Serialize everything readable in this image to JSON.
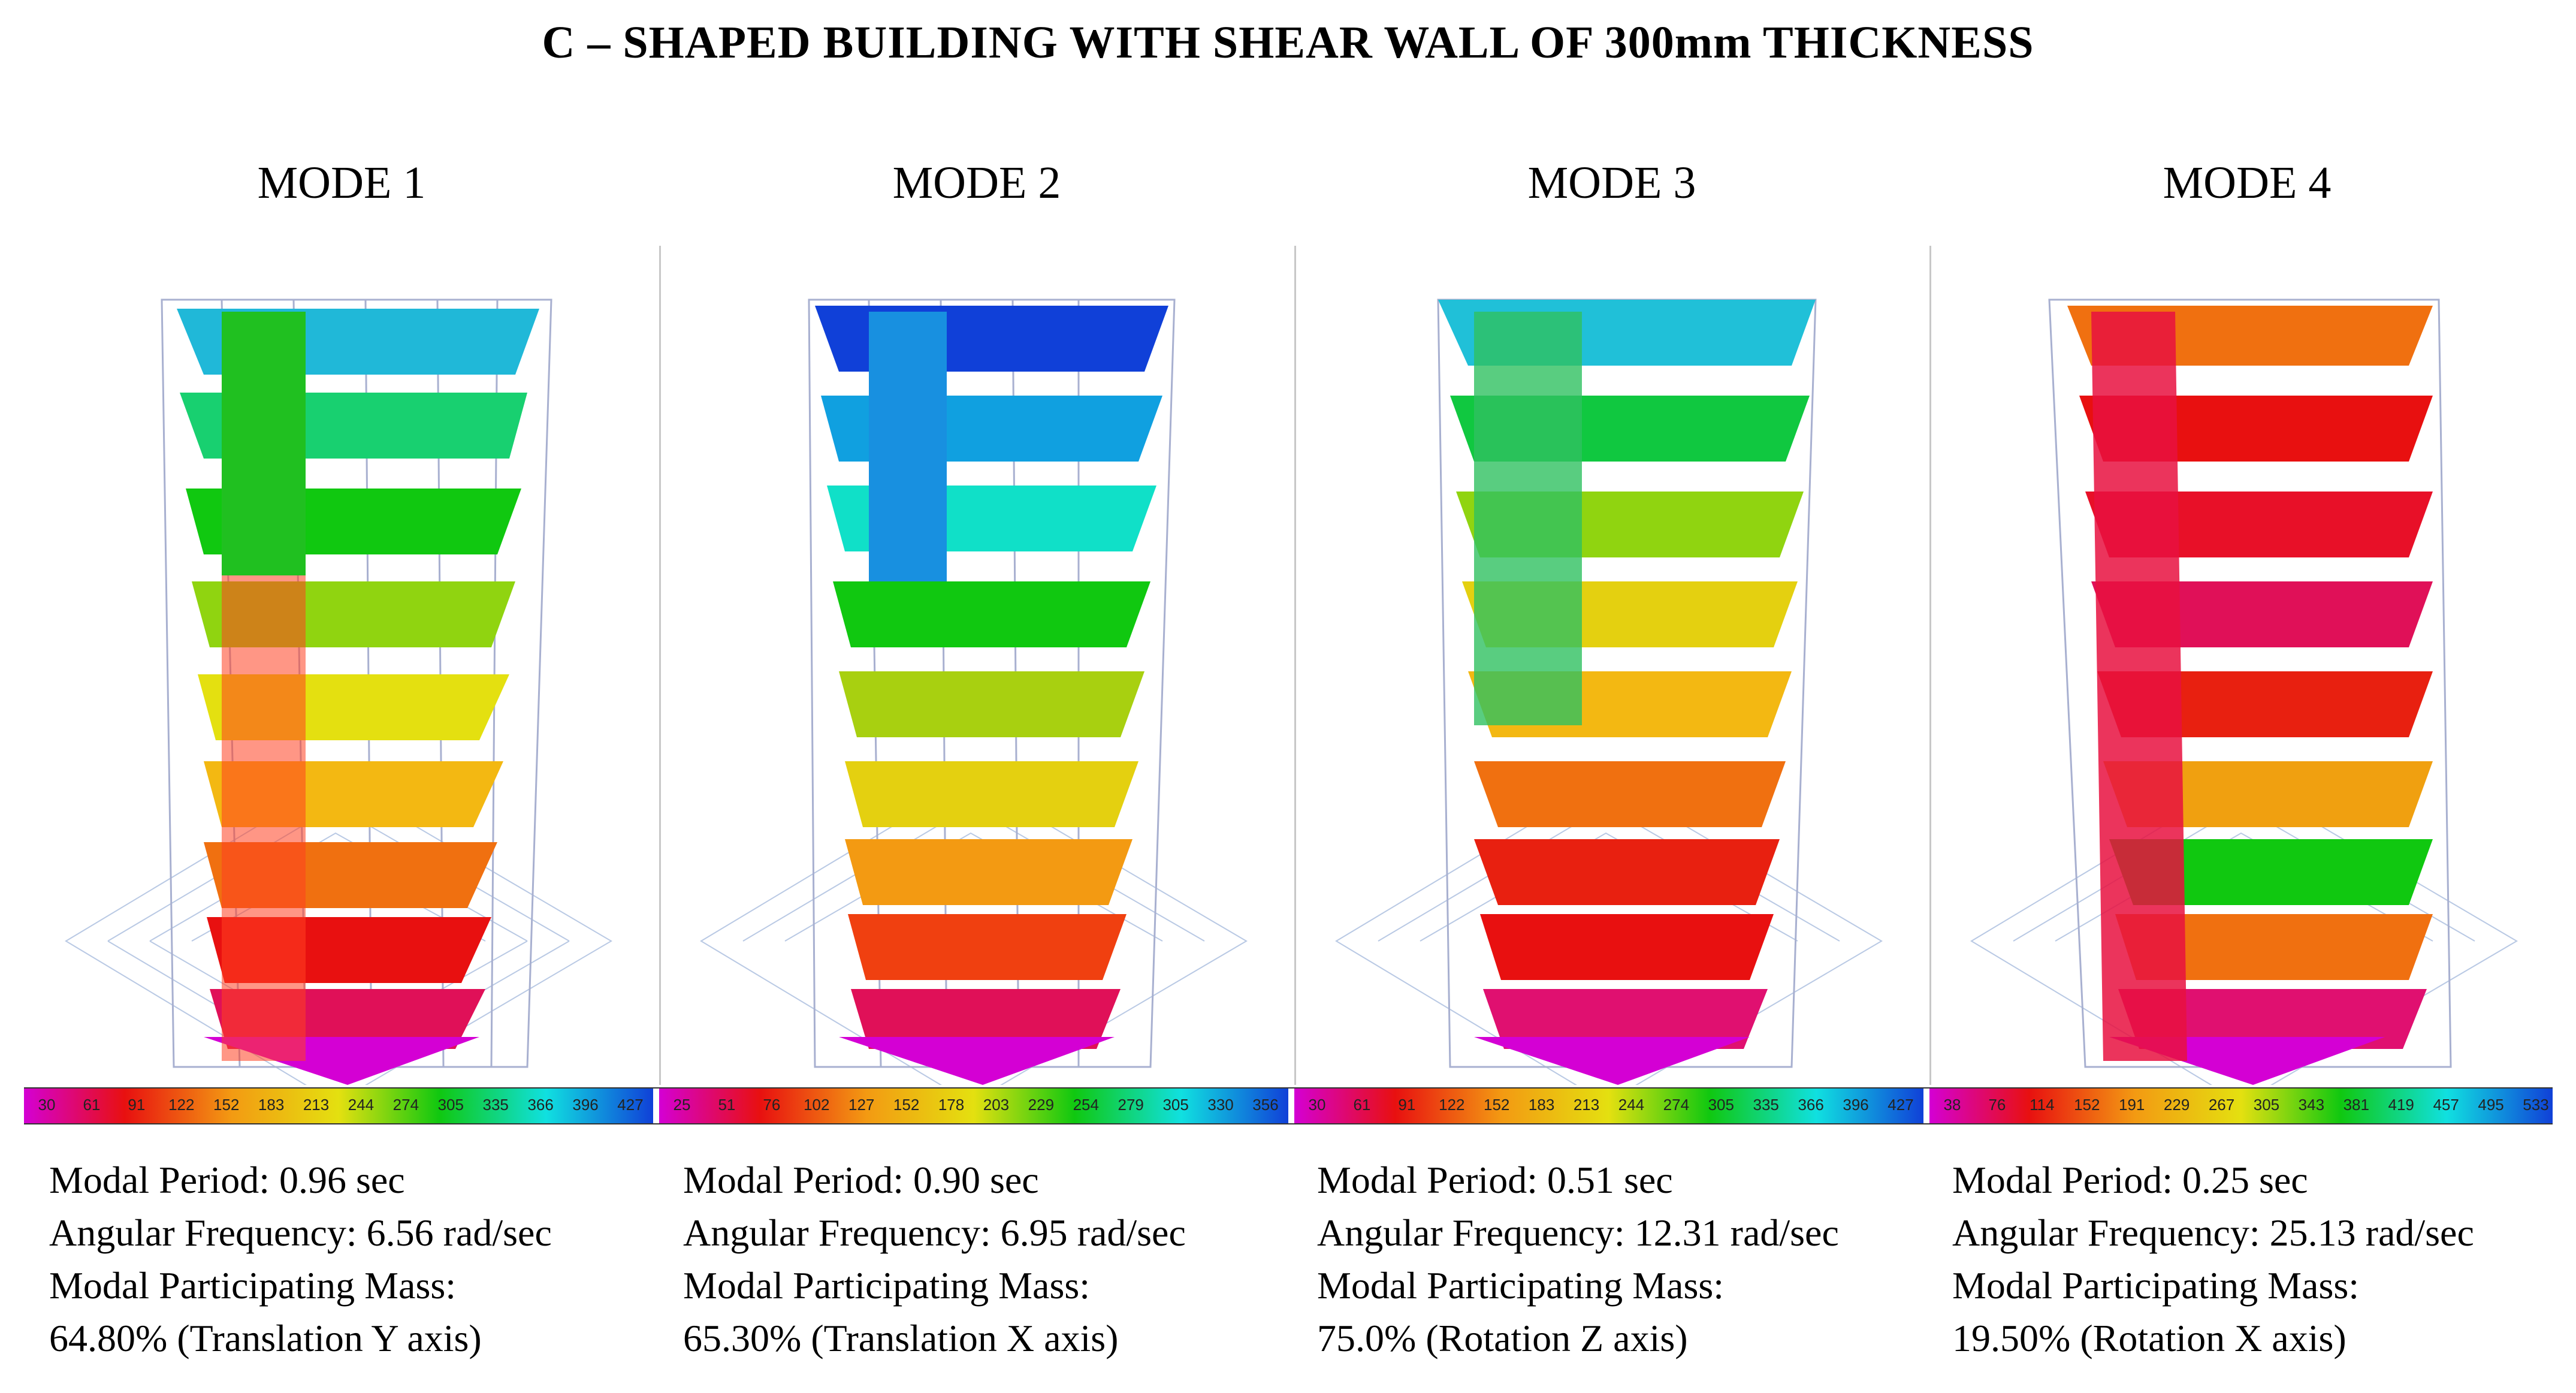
{
  "title": "C – SHAPED BUILDING WITH SHEAR WALL OF 300mm THICKNESS",
  "colors": {
    "magenta": "#d400d4",
    "red": "#e81010",
    "orange": "#f39a12",
    "yellow": "#e4e010",
    "green": "#10c810",
    "cyan": "#10e0e0",
    "blue": "#1040d8",
    "grid": "#a8b0d0"
  },
  "panels": [
    {
      "mode": "MODE 1",
      "period": "Modal Period: 0.96 sec",
      "frequency": "Angular Frequency: 6.56 rad/sec",
      "mass_label": "Modal Participating Mass:",
      "mass_value": "64.80% (Translation Y axis)",
      "scale_ticks": [
        "30",
        "61",
        "91",
        "122",
        "152",
        "183",
        "213",
        "244",
        "274",
        "305",
        "335",
        "366",
        "396",
        "427"
      ]
    },
    {
      "mode": "MODE 2",
      "period": "Modal Period: 0.90 sec",
      "frequency": "Angular Frequency: 6.95 rad/sec",
      "mass_label": "Modal Participating Mass:",
      "mass_value": "65.30% (Translation X axis)",
      "scale_ticks": [
        "25",
        "51",
        "76",
        "102",
        "127",
        "152",
        "178",
        "203",
        "229",
        "254",
        "279",
        "305",
        "330",
        "356"
      ]
    },
    {
      "mode": "MODE 3",
      "period": "Modal Period: 0.51 sec",
      "frequency": "Angular Frequency: 12.31 rad/sec",
      "mass_label": "Modal Participating Mass:",
      "mass_value": "75.0% (Rotation Z axis)",
      "scale_ticks": [
        "30",
        "61",
        "91",
        "122",
        "152",
        "183",
        "213",
        "244",
        "274",
        "305",
        "335",
        "366",
        "396",
        "427"
      ]
    },
    {
      "mode": "MODE 4",
      "period": "Modal Period: 0.25 sec",
      "frequency": "Angular Frequency: 25.13 rad/sec",
      "mass_label": "Modal Participating Mass:",
      "mass_value": "19.50% (Rotation X axis)",
      "scale_ticks": [
        "38",
        "76",
        "114",
        "152",
        "191",
        "229",
        "267",
        "305",
        "343",
        "381",
        "419",
        "457",
        "495",
        "533"
      ]
    }
  ]
}
